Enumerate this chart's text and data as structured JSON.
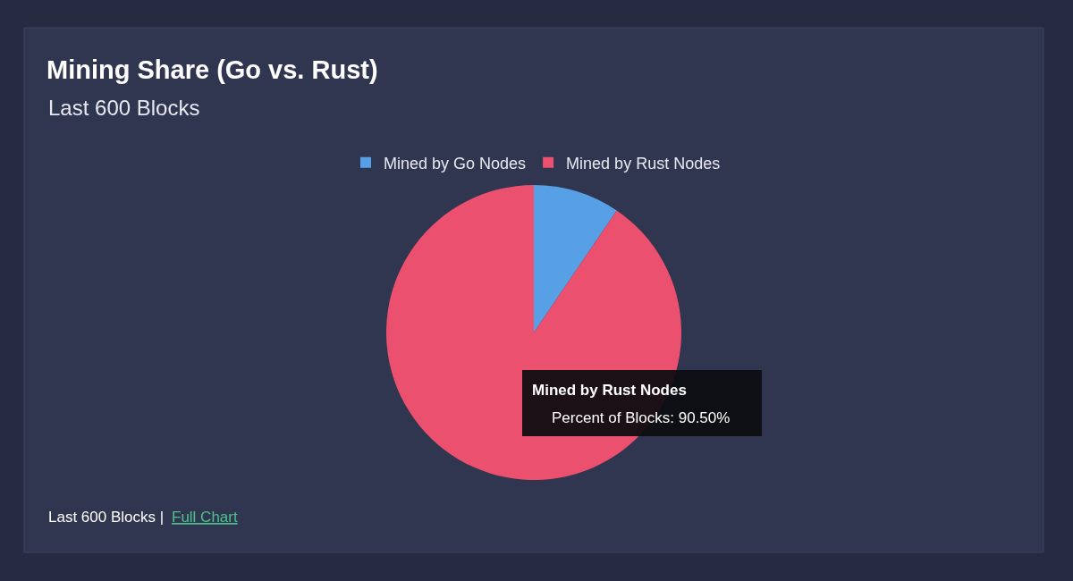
{
  "chart_data": {
    "type": "pie",
    "title": "Mining Share (Go vs. Rust)",
    "subtitle": "Last 600 Blocks",
    "categories": [
      "Mined by Go Nodes",
      "Mined by Rust Nodes"
    ],
    "values": [
      9.5,
      90.5
    ],
    "colors": [
      "#57a0e5",
      "#ec506f"
    ],
    "legend": "top",
    "annotations": [
      "Mined by Rust Nodes",
      "Percent of Blocks: 90.50%",
      "Last 600 Blocks |",
      "Full Chart"
    ]
  }
}
